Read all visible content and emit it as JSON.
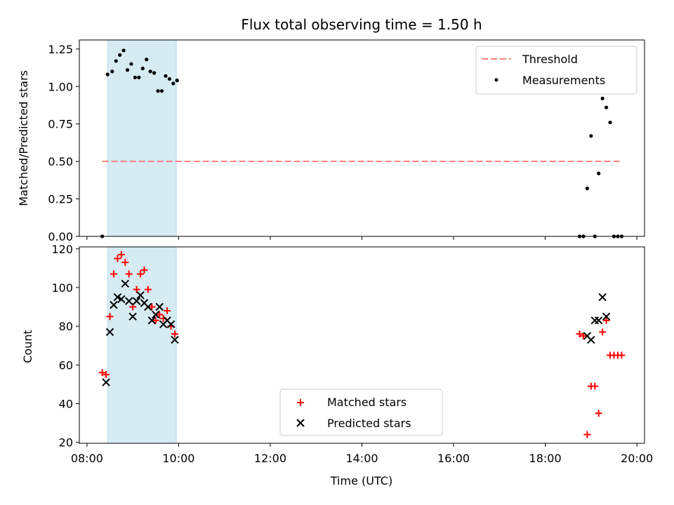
{
  "figure": {
    "title": "Flux total observing time = 1.50 h"
  },
  "colors": {
    "threshold": "#ff7f7f",
    "shade": "#add8e6",
    "matched": "#ff0000",
    "predicted": "#000000",
    "measurements": "#000000"
  },
  "chart_data": [
    {
      "type": "scatter",
      "panel": "top",
      "title": "Flux total observing time = 1.50 h",
      "xlabel": "",
      "ylabel": "Matched/Predicted stars",
      "x_unit": "hours UTC",
      "xlim": [
        "07:50",
        "20:10"
      ],
      "ylim": [
        0,
        1.31
      ],
      "yticks": [
        "0.00",
        "0.25",
        "0.50",
        "0.75",
        "1.00",
        "1.25"
      ],
      "shaded_interval": [
        "08:27",
        "09:57"
      ],
      "legend": {
        "placement": "top-right",
        "entries": [
          "Threshold",
          "Measurements"
        ]
      },
      "series": [
        {
          "name": "Threshold",
          "style": "dashed-line",
          "x": [
            "08:20",
            "19:40"
          ],
          "y": [
            0.5,
            0.5
          ]
        },
        {
          "name": "Measurements",
          "style": "dot",
          "x": [
            "08:20",
            "08:27",
            "08:33",
            "08:38",
            "08:43",
            "08:48",
            "08:53",
            "08:58",
            "09:03",
            "09:08",
            "09:13",
            "09:18",
            "09:23",
            "09:28",
            "09:33",
            "09:38",
            "09:43",
            "09:48",
            "09:53",
            "09:58",
            "09:58",
            "18:45",
            "18:50",
            "18:55",
            "19:00",
            "19:05",
            "19:10",
            "19:15",
            "19:20",
            "19:25",
            "19:30",
            "19:35",
            "19:40"
          ],
          "y": [
            0.0,
            1.08,
            1.1,
            1.17,
            1.21,
            1.24,
            1.11,
            1.15,
            1.06,
            1.06,
            1.12,
            1.18,
            1.1,
            1.09,
            0.97,
            0.97,
            1.07,
            1.05,
            1.02,
            1.04,
            1.04,
            0.0,
            0.0,
            0.32,
            0.67,
            0.0,
            0.42,
            0.92,
            0.86,
            0.76,
            0.0,
            0.0,
            0.0
          ]
        }
      ]
    },
    {
      "type": "scatter",
      "panel": "bottom",
      "xlabel": "Time (UTC)",
      "ylabel": "Count",
      "xlim": [
        "07:50",
        "20:10"
      ],
      "xticks": [
        "08:00",
        "10:00",
        "12:00",
        "14:00",
        "16:00",
        "18:00",
        "20:00"
      ],
      "ylim": [
        19.5,
        121
      ],
      "yticks": [
        "20",
        "40",
        "60",
        "80",
        "100",
        "120"
      ],
      "shaded_interval": [
        "08:27",
        "09:57"
      ],
      "legend": {
        "placement": "bottom-center",
        "entries": [
          "Matched stars",
          "Predicted stars"
        ]
      },
      "series": [
        {
          "name": "Matched stars",
          "marker": "+",
          "x": [
            "08:20",
            "08:25",
            "08:30",
            "08:35",
            "08:40",
            "08:45",
            "08:50",
            "08:55",
            "09:00",
            "09:05",
            "09:10",
            "09:15",
            "09:20",
            "09:25",
            "09:30",
            "09:35",
            "09:40",
            "09:45",
            "09:50",
            "09:55",
            "18:45",
            "18:50",
            "18:55",
            "19:00",
            "19:05",
            "19:10",
            "19:15",
            "19:20",
            "19:25",
            "19:30",
            "19:35",
            "19:40"
          ],
          "y": [
            56,
            55,
            85,
            107,
            115,
            117,
            113,
            107,
            90,
            99,
            107,
            109,
            99,
            90,
            83,
            86,
            84,
            88,
            80,
            76,
            76,
            75,
            24,
            49,
            49,
            35,
            77,
            83,
            65,
            65,
            65,
            65
          ]
        },
        {
          "name": "Predicted stars",
          "marker": "x",
          "x": [
            "08:25",
            "08:30",
            "08:35",
            "08:40",
            "08:45",
            "08:50",
            "08:55",
            "09:00",
            "09:05",
            "09:10",
            "09:15",
            "09:20",
            "09:25",
            "09:30",
            "09:35",
            "09:40",
            "09:45",
            "09:50",
            "09:55",
            "18:55",
            "19:00",
            "19:05",
            "19:10",
            "19:15",
            "19:20"
          ],
          "y": [
            51,
            77,
            91,
            95,
            94,
            102,
            93,
            85,
            93,
            96,
            92,
            90,
            83,
            86,
            90,
            81,
            83,
            81,
            73,
            75,
            73,
            83,
            83,
            95,
            85
          ]
        }
      ]
    }
  ]
}
